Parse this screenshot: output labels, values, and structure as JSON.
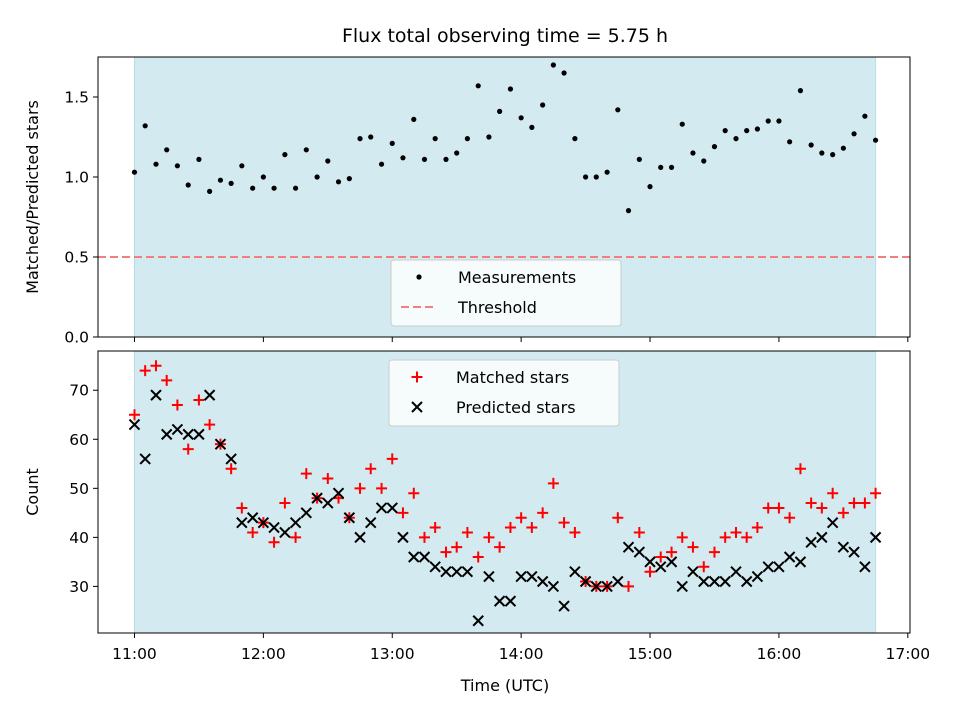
{
  "chart_data": {
    "title": "Flux total observing time = 5.75 h",
    "xlabel": "Time (UTC)",
    "x_tick_labels": [
      "11:00",
      "12:00",
      "13:00",
      "14:00",
      "15:00",
      "16:00",
      "17:00"
    ],
    "x_ticks_hours": [
      11,
      12,
      13,
      14,
      15,
      16,
      17
    ],
    "xlim_hours": [
      10.717,
      17.017
    ],
    "shaded_span_hours": [
      11.0,
      16.75
    ],
    "shade_color": "#d3eaf0",
    "panels": [
      {
        "type": "scatter",
        "ylabel": "Matched/Predicted stars",
        "ylim": [
          0.0,
          1.75
        ],
        "y_ticks": [
          0.0,
          0.5,
          1.0,
          1.5
        ],
        "y_tick_labels": [
          "0.0",
          "0.5",
          "1.0",
          "1.5"
        ],
        "legend": {
          "position": "lower-center",
          "entries": [
            {
              "label": "Measurements",
              "marker": "dot",
              "color": "#000000"
            },
            {
              "label": "Threshold",
              "marker": "dashed-line",
              "color": "#f08080"
            }
          ]
        },
        "threshold": 0.5,
        "threshold_color": "#f08080",
        "series": [
          {
            "name": "Measurements",
            "marker": "dot",
            "color": "#000000",
            "x": [
              11.0,
              11.083,
              11.167,
              11.25,
              11.333,
              11.417,
              11.5,
              11.583,
              11.667,
              11.75,
              11.833,
              11.917,
              12.0,
              12.083,
              12.167,
              12.25,
              12.333,
              12.417,
              12.5,
              12.583,
              12.667,
              12.75,
              12.833,
              12.917,
              13.0,
              13.083,
              13.167,
              13.25,
              13.333,
              13.417,
              13.5,
              13.583,
              13.667,
              13.75,
              13.833,
              13.917,
              14.0,
              14.083,
              14.167,
              14.25,
              14.333,
              14.417,
              14.5,
              14.583,
              14.667,
              14.75,
              14.833,
              14.917,
              15.0,
              15.083,
              15.167,
              15.25,
              15.333,
              15.417,
              15.5,
              15.583,
              15.667,
              15.75,
              15.833,
              15.917,
              16.0,
              16.083,
              16.167,
              16.25,
              16.333,
              16.417,
              16.5,
              16.583,
              16.667,
              16.75
            ],
            "y": [
              1.03,
              1.32,
              1.08,
              1.17,
              1.07,
              0.95,
              1.11,
              0.91,
              0.98,
              0.96,
              1.07,
              0.93,
              1.0,
              0.93,
              1.14,
              0.93,
              1.17,
              1.0,
              1.1,
              0.97,
              0.99,
              1.24,
              1.25,
              1.08,
              1.21,
              1.12,
              1.36,
              1.11,
              1.24,
              1.11,
              1.15,
              1.24,
              1.57,
              1.25,
              1.41,
              1.55,
              1.37,
              1.31,
              1.45,
              1.7,
              1.65,
              1.24,
              1.0,
              1.0,
              1.03,
              1.42,
              0.79,
              1.11,
              0.94,
              1.06,
              1.06,
              1.33,
              1.15,
              1.1,
              1.19,
              1.29,
              1.24,
              1.29,
              1.3,
              1.35,
              1.35,
              1.22,
              1.54,
              1.2,
              1.15,
              1.14,
              1.18,
              1.27,
              1.38,
              1.23
            ]
          }
        ]
      },
      {
        "type": "scatter",
        "ylabel": "Count",
        "ylim": [
          20.5,
          78.0
        ],
        "y_ticks": [
          30,
          40,
          50,
          60,
          70
        ],
        "y_tick_labels": [
          "30",
          "40",
          "50",
          "60",
          "70"
        ],
        "legend": {
          "position": "upper-center",
          "entries": [
            {
              "label": "Matched stars",
              "marker": "plus",
              "color": "#ff0000"
            },
            {
              "label": "Predicted stars",
              "marker": "x",
              "color": "#000000"
            }
          ]
        },
        "series": [
          {
            "name": "Matched stars",
            "marker": "plus",
            "color": "#ff0000",
            "x": [
              11.0,
              11.083,
              11.167,
              11.25,
              11.333,
              11.417,
              11.5,
              11.583,
              11.667,
              11.75,
              11.833,
              11.917,
              12.0,
              12.083,
              12.167,
              12.25,
              12.333,
              12.417,
              12.5,
              12.583,
              12.667,
              12.75,
              12.833,
              12.917,
              13.0,
              13.083,
              13.167,
              13.25,
              13.333,
              13.417,
              13.5,
              13.583,
              13.667,
              13.75,
              13.833,
              13.917,
              14.0,
              14.083,
              14.167,
              14.25,
              14.333,
              14.417,
              14.5,
              14.583,
              14.667,
              14.75,
              14.833,
              14.917,
              15.0,
              15.083,
              15.167,
              15.25,
              15.333,
              15.417,
              15.5,
              15.583,
              15.667,
              15.75,
              15.833,
              15.917,
              16.0,
              16.083,
              16.167,
              16.25,
              16.333,
              16.417,
              16.5,
              16.583,
              16.667,
              16.75
            ],
            "y": [
              65,
              74,
              75,
              72,
              67,
              58,
              68,
              63,
              59,
              54,
              46,
              41,
              43,
              39,
              47,
              40,
              53,
              48,
              52,
              48,
              44,
              50,
              54,
              50,
              56,
              45,
              49,
              40,
              42,
              37,
              38,
              41,
              36,
              40,
              38,
              42,
              44,
              42,
              45,
              51,
              43,
              41,
              31,
              30,
              30,
              44,
              30,
              41,
              33,
              36,
              37,
              40,
              38,
              34,
              37,
              40,
              41,
              40,
              42,
              46,
              46,
              44,
              54,
              47,
              46,
              49,
              45,
              47,
              47,
              49
            ]
          },
          {
            "name": "Predicted stars",
            "marker": "x",
            "color": "#000000",
            "x": [
              11.0,
              11.083,
              11.167,
              11.25,
              11.333,
              11.417,
              11.5,
              11.583,
              11.667,
              11.75,
              11.833,
              11.917,
              12.0,
              12.083,
              12.167,
              12.25,
              12.333,
              12.417,
              12.5,
              12.583,
              12.667,
              12.75,
              12.833,
              12.917,
              13.0,
              13.083,
              13.167,
              13.25,
              13.333,
              13.417,
              13.5,
              13.583,
              13.667,
              13.75,
              13.833,
              13.917,
              14.0,
              14.083,
              14.167,
              14.25,
              14.333,
              14.417,
              14.5,
              14.583,
              14.667,
              14.75,
              14.833,
              14.917,
              15.0,
              15.083,
              15.167,
              15.25,
              15.333,
              15.417,
              15.5,
              15.583,
              15.667,
              15.75,
              15.833,
              15.917,
              16.0,
              16.083,
              16.167,
              16.25,
              16.333,
              16.417,
              16.5,
              16.583,
              16.667,
              16.75
            ],
            "y": [
              63,
              56,
              69,
              61,
              62,
              61,
              61,
              69,
              59,
              56,
              43,
              44,
              43,
              42,
              41,
              43,
              45,
              48,
              47,
              49,
              44,
              40,
              43,
              46,
              46,
              40,
              36,
              36,
              34,
              33,
              33,
              33,
              23,
              32,
              27,
              27,
              32,
              32,
              31,
              30,
              26,
              33,
              31,
              30,
              30,
              31,
              38,
              37,
              35,
              34,
              35,
              30,
              33,
              31,
              31,
              31,
              33,
              31,
              32,
              34,
              34,
              36,
              35,
              39,
              40,
              43,
              38,
              37,
              34,
              40
            ]
          }
        ]
      }
    ]
  }
}
